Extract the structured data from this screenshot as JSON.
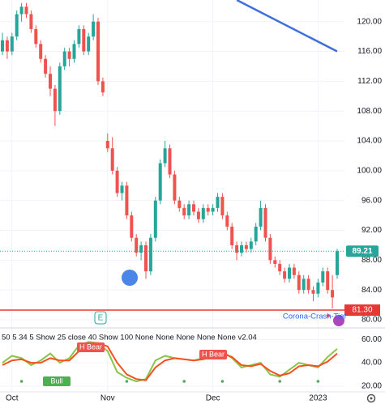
{
  "chart_data": {
    "type": "candlestick",
    "categories": [
      null,
      null,
      "Oct",
      null,
      null,
      null,
      null,
      null,
      null,
      null,
      null,
      null,
      null,
      null,
      null,
      null,
      null,
      null,
      null,
      null,
      null,
      null,
      "Nov",
      null,
      null,
      null,
      null,
      null,
      null,
      null,
      null,
      null,
      null,
      null,
      null,
      null,
      null,
      null,
      null,
      null,
      null,
      null,
      null,
      null,
      "Dec",
      null,
      null,
      null,
      null,
      null,
      null,
      null,
      null,
      null,
      null,
      null,
      null,
      null,
      null,
      null,
      null,
      null,
      null,
      null,
      null,
      null,
      "2023",
      null,
      null,
      null,
      null
    ],
    "ohlc": [
      [
        116,
        118.5,
        115.5,
        117.5
      ],
      [
        117.5,
        118,
        115,
        116
      ],
      [
        116,
        118.5,
        115.5,
        118
      ],
      [
        118,
        121.5,
        117.5,
        121
      ],
      [
        121,
        122.5,
        120,
        122
      ],
      [
        122,
        122.5,
        120.5,
        121
      ],
      [
        121,
        121.5,
        118.5,
        119
      ],
      [
        119,
        119.5,
        116.5,
        117
      ],
      [
        117,
        117.5,
        114.5,
        115
      ],
      [
        115,
        115.5,
        112.5,
        113
      ],
      [
        113,
        114,
        110,
        111
      ],
      [
        111,
        111.5,
        106,
        108
      ],
      [
        108,
        114.5,
        107.5,
        114
      ],
      [
        114,
        116.5,
        113.5,
        116
      ],
      [
        116,
        116.5,
        114,
        115
      ],
      [
        115,
        117.5,
        114.5,
        117
      ],
      [
        117,
        119.5,
        116.5,
        119
      ],
      [
        119,
        119.5,
        115.5,
        116
      ],
      [
        116,
        118.5,
        115.5,
        118
      ],
      [
        118,
        121,
        117.5,
        120
      ],
      [
        120,
        120.5,
        111.5,
        112
      ],
      [
        112,
        112.5,
        110,
        110.5
      ],
      [
        104,
        105,
        102.5,
        103
      ],
      [
        103,
        104.5,
        99.5,
        100
      ],
      [
        100,
        100.5,
        96.5,
        97
      ],
      [
        97,
        98.5,
        96,
        98
      ],
      [
        98,
        98.5,
        93.5,
        94
      ],
      [
        94,
        94.5,
        90.5,
        91
      ],
      [
        91,
        91.5,
        88.5,
        89
      ],
      [
        89,
        90.5,
        88,
        90
      ],
      [
        90,
        90.5,
        85.5,
        86.5
      ],
      [
        86.5,
        91.5,
        86,
        91
      ],
      [
        91,
        96.5,
        90.5,
        96
      ],
      [
        96,
        101.5,
        95.5,
        101
      ],
      [
        101,
        104,
        100.5,
        103
      ],
      [
        103,
        103.5,
        99,
        99.5
      ],
      [
        99.5,
        100,
        95.5,
        96
      ],
      [
        96,
        96.5,
        94.5,
        95
      ],
      [
        95,
        95.5,
        93.5,
        94
      ],
      [
        94,
        96,
        93.5,
        95.5
      ],
      [
        95.5,
        96,
        94,
        94.5
      ],
      [
        94.5,
        95,
        93,
        93.5
      ],
      [
        93.5,
        95.5,
        93,
        95
      ],
      [
        95,
        95.5,
        94,
        94.5
      ],
      [
        94.5,
        95.5,
        94,
        95
      ],
      [
        95,
        97,
        94.5,
        96.5
      ],
      [
        96.5,
        97,
        93.5,
        94
      ],
      [
        94,
        94.5,
        92,
        92.5
      ],
      [
        92.5,
        93,
        89.5,
        90
      ],
      [
        90,
        90.5,
        88,
        89
      ],
      [
        89,
        90.5,
        88.5,
        90
      ],
      [
        90,
        90.5,
        89,
        89.5
      ],
      [
        89.5,
        91,
        89,
        90.5
      ],
      [
        90.5,
        93,
        90,
        92.5
      ],
      [
        92.5,
        96,
        92,
        95
      ],
      [
        95,
        95.5,
        90.5,
        91
      ],
      [
        91,
        91.5,
        87.5,
        88
      ],
      [
        88,
        88.5,
        87,
        87.5
      ],
      [
        87.5,
        88,
        86,
        86.5
      ],
      [
        86.5,
        87,
        85,
        85.5
      ],
      [
        85.5,
        87.5,
        85,
        87
      ],
      [
        87,
        87.5,
        85.5,
        86
      ],
      [
        86,
        86.5,
        83.5,
        84
      ],
      [
        84,
        86,
        83.5,
        85.5
      ],
      [
        85.5,
        86,
        83.5,
        84
      ],
      [
        84,
        84.5,
        82.5,
        83.5
      ],
      [
        83.5,
        85.5,
        83,
        85
      ],
      [
        85,
        87,
        84.5,
        86.5
      ],
      [
        86.5,
        87,
        83.5,
        84
      ],
      [
        84,
        86,
        81.5,
        83
      ],
      [
        86,
        89.5,
        85.5,
        89.21
      ]
    ],
    "up_color": "#26a69a",
    "down_color": "#ef5350",
    "trend_line": {
      "color": "#3f6fdc",
      "x": [
        49,
        70
      ],
      "values": [
        122.9,
        116
      ]
    },
    "level": {
      "value": 81.3,
      "label": "81.30",
      "name": "Corona-Crash-Tief",
      "color": "#e53935"
    },
    "ylim": [
      80,
      122.9
    ],
    "yticks": [
      {
        "value": 80,
        "label": "80.00"
      },
      {
        "value": 84,
        "label": "84.00"
      },
      {
        "value": 88,
        "label": "88.00"
      },
      {
        "value": 92,
        "label": "92.00"
      },
      {
        "value": 96,
        "label": "96.00"
      },
      {
        "value": 100,
        "label": "100.00"
      },
      {
        "value": 104,
        "label": "104.00"
      },
      {
        "value": 108,
        "label": "108.00"
      },
      {
        "value": 112,
        "label": "112.00"
      },
      {
        "value": 116,
        "label": "116.00"
      },
      {
        "value": 120,
        "label": "120.00"
      }
    ],
    "indicator": {
      "title": "50 5 34 5 Show 25 close 40 Show 100 None None None None None v2.04",
      "ylim": [
        15,
        70
      ],
      "yticks": [
        {
          "value": 20,
          "label": "20.00"
        },
        {
          "value": 40,
          "label": "40.00"
        },
        {
          "value": 60,
          "label": "60.00"
        }
      ],
      "x": [
        0,
        2,
        4,
        6,
        8,
        10,
        12,
        14,
        16,
        18,
        20,
        22,
        24,
        26,
        28,
        30,
        32,
        34,
        36,
        38,
        40,
        42,
        44,
        46,
        48,
        50,
        52,
        54,
        56,
        58,
        60,
        62,
        64,
        66,
        68,
        70
      ],
      "series": [
        {
          "color": "#8bc34a",
          "values": [
            40,
            46,
            44,
            38,
            42,
            48,
            40,
            44,
            55,
            58,
            57,
            50,
            32,
            27,
            24,
            26,
            42,
            46,
            44,
            43,
            42,
            44,
            46,
            50,
            44,
            36,
            38,
            40,
            30,
            28,
            34,
            40,
            38,
            36,
            45,
            52
          ]
        },
        {
          "color": "#f4511e",
          "values": [
            38,
            42,
            43,
            40,
            40,
            44,
            42,
            42,
            50,
            55,
            57,
            54,
            40,
            30,
            26,
            25,
            36,
            42,
            44,
            43,
            42,
            43,
            45,
            48,
            45,
            38,
            37,
            39,
            33,
            29,
            31,
            37,
            38,
            37,
            41,
            48
          ]
        }
      ],
      "annotations": [
        "H Bear",
        "H Bear",
        "Bull"
      ]
    }
  }
}
